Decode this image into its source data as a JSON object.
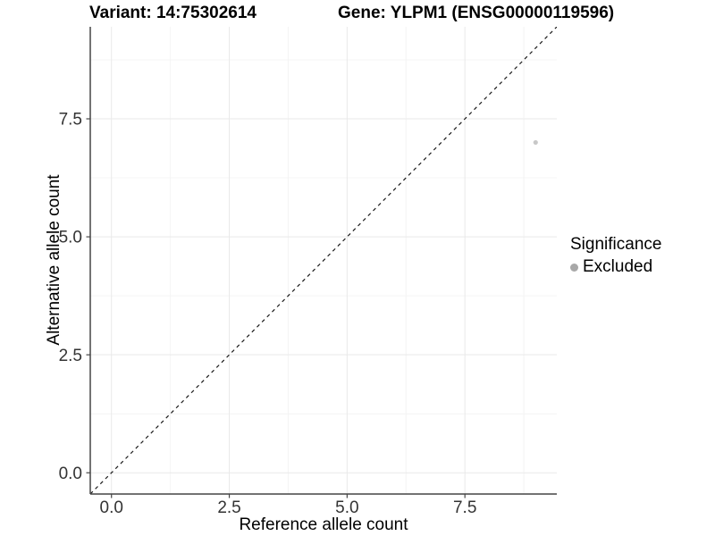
{
  "header": {
    "variant_title": "Variant: 14:75302614",
    "gene_title": "Gene: YLPM1 (ENSG00000119596)"
  },
  "chart_data": {
    "type": "scatter",
    "title_left": "Variant: 14:75302614",
    "title_right": "Gene: YLPM1 (ENSG00000119596)",
    "xlabel": "Reference allele count",
    "ylabel": "Alternative allele count",
    "xlim": [
      -0.45,
      9.45
    ],
    "ylim": [
      -0.45,
      9.45
    ],
    "x_ticks": [
      0,
      2.5,
      5,
      7.5
    ],
    "y_ticks": [
      0,
      2.5,
      5,
      7.5
    ],
    "x_tick_labels": [
      "0.0",
      "2.5",
      "5.0",
      "7.5"
    ],
    "y_tick_labels": [
      "0.0",
      "2.5",
      "5.0",
      "7.5"
    ],
    "minor_breaks": [
      1.25,
      3.75,
      6.25,
      8.75
    ],
    "grid": "major+minor",
    "points": [
      {
        "x": 9,
        "y": 7,
        "series": "Excluded"
      }
    ],
    "reference_line": {
      "slope": 1,
      "intercept": 0,
      "style": "dashed",
      "color": "#1a1a1a"
    },
    "legend": {
      "title": "Significance",
      "position": "right",
      "entries": [
        {
          "label": "Excluded",
          "color": "#a8a8a8"
        }
      ]
    },
    "colors": {
      "point": "#c8c8c8",
      "legend_dot": "#a8a8a8",
      "grid_major": "#e9e9e9",
      "grid_minor": "#f4f4f4",
      "axis_line": "#454545",
      "tick_label": "#333333"
    }
  }
}
